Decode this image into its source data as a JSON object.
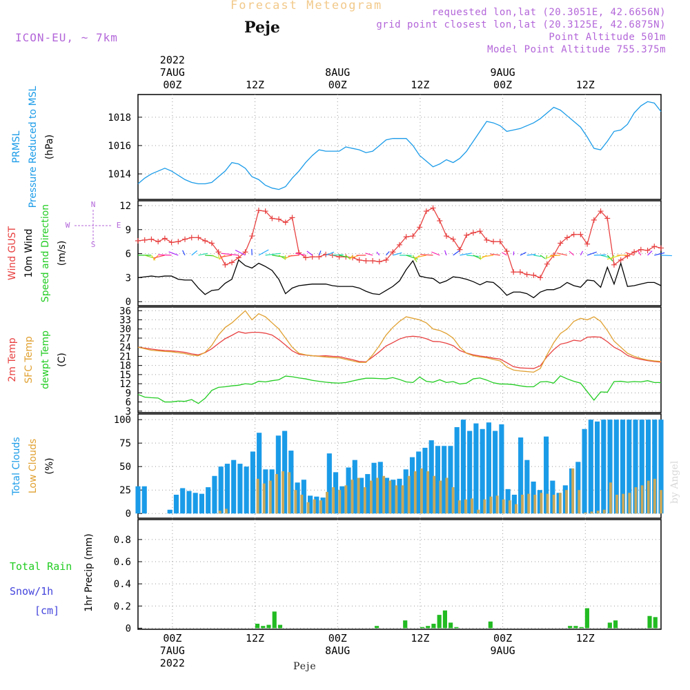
{
  "header": {
    "subtitle": "Forecast Meteogram",
    "location": "Peje",
    "model": "ICON-EU, ~ 7km",
    "requested": "requested lon,lat (20.3051E, 42.6656N)",
    "gridpoint": "grid point closest lon,lat (20.3125E, 42.6875N)",
    "altitude": "Point Altitude 501m",
    "model_altitude": "Model Point Altitude 755.375m"
  },
  "footer": {
    "location": "Peje",
    "watermark": "by Angel"
  },
  "time_axis": {
    "ticks": [
      {
        "label": "00Z",
        "date": "7AUG",
        "year": "2022"
      },
      {
        "label": "12Z",
        "date": "",
        "year": ""
      },
      {
        "label": "00Z",
        "date": "8AUG",
        "year": ""
      },
      {
        "label": "12Z",
        "date": "",
        "year": ""
      },
      {
        "label": "00Z",
        "date": "9AUG",
        "year": ""
      },
      {
        "label": "12Z",
        "date": "",
        "year": ""
      }
    ],
    "hours_from_start": [
      0,
      12,
      24,
      36,
      48,
      60
    ],
    "start_hour_offset": -5,
    "end_hour_offset": 71
  },
  "colors": {
    "blue": "#1a9be8",
    "red": "#e84040",
    "orange": "#e0a030",
    "green": "#22cc22",
    "black": "#000000",
    "purple": "#9955cc"
  },
  "chart_data": [
    {
      "type": "line",
      "panel": "pressure",
      "ylabel_lines": [
        {
          "text": "PRMSL",
          "color": "#1a9be8"
        },
        {
          "text": "Pressure Reduced to MSL",
          "color": "#1a9be8"
        },
        {
          "text": "(hPa)",
          "color": "#000000"
        }
      ],
      "yticks": [
        1014,
        1016,
        1018
      ],
      "ylim": [
        1012.2,
        1019.6
      ],
      "series": [
        {
          "name": "PRMSL",
          "color": "#1a9be8",
          "values": [
            1013.3,
            1013.7,
            1014.0,
            1014.2,
            1014.4,
            1014.2,
            1013.9,
            1013.6,
            1013.4,
            1013.3,
            1013.3,
            1013.4,
            1013.8,
            1014.2,
            1014.8,
            1014.7,
            1014.4,
            1013.8,
            1013.6,
            1013.2,
            1013.0,
            1012.9,
            1013.1,
            1013.7,
            1014.2,
            1014.8,
            1015.3,
            1015.7,
            1015.6,
            1015.6,
            1015.6,
            1015.9,
            1015.8,
            1015.7,
            1015.5,
            1015.6,
            1016.0,
            1016.4,
            1016.5,
            1016.5,
            1016.5,
            1016.0,
            1015.3,
            1014.9,
            1014.5,
            1014.7,
            1015.0,
            1014.8,
            1015.1,
            1015.6,
            1016.3,
            1017.0,
            1017.7,
            1017.6,
            1017.4,
            1017.0,
            1017.1,
            1017.2,
            1017.4,
            1017.6,
            1017.9,
            1018.3,
            1018.7,
            1018.5,
            1018.1,
            1017.7,
            1017.3,
            1016.6,
            1015.8,
            1015.7,
            1016.3,
            1017.0,
            1017.1,
            1017.5,
            1018.3,
            1018.8,
            1019.1,
            1019.0,
            1018.4
          ]
        }
      ]
    },
    {
      "type": "line",
      "panel": "wind",
      "ylabel_lines": [
        {
          "text": "Wind GUST",
          "color": "#e84040"
        },
        {
          "text": "10m Wind",
          "color": "#000000"
        },
        {
          "text": "Speed and Direction",
          "color": "#22cc22"
        },
        {
          "text": "(m/s)",
          "color": "#000000"
        }
      ],
      "compass": {
        "n": "N",
        "s": "S",
        "e": "E",
        "w": "W",
        "color": "#b366d9"
      },
      "yticks": [
        0,
        3,
        6,
        9,
        12
      ],
      "ylim": [
        -0.5,
        12.6
      ],
      "series": [
        {
          "name": "Wind GUST",
          "color": "#e84040",
          "marker": "plus",
          "values": [
            7.6,
            7.7,
            7.8,
            7.5,
            7.9,
            7.4,
            7.5,
            7.8,
            8.0,
            8.0,
            7.6,
            7.3,
            6.2,
            4.6,
            4.9,
            5.5,
            6.2,
            8.2,
            11.4,
            11.3,
            10.4,
            10.3,
            9.9,
            10.5,
            6.1,
            5.5,
            5.6,
            5.6,
            5.9,
            5.8,
            5.6,
            5.6,
            5.5,
            5.2,
            5.1,
            5.1,
            5.0,
            5.2,
            6.2,
            7.1,
            8.1,
            8.2,
            9.3,
            11.3,
            11.7,
            10.1,
            8.2,
            7.8,
            6.5,
            8.3,
            8.6,
            8.8,
            7.7,
            7.5,
            7.5,
            6.3,
            3.7,
            3.7,
            3.4,
            3.3,
            3.0,
            4.7,
            5.8,
            7.3,
            8.0,
            8.4,
            8.4,
            7.2,
            10.2,
            11.3,
            10.4,
            4.6,
            5.2,
            5.7,
            6.2,
            6.5,
            6.4,
            6.9,
            6.7
          ]
        },
        {
          "name": "10m Wind",
          "color": "#000000",
          "values": [
            3.0,
            3.1,
            3.2,
            3.1,
            3.2,
            3.2,
            2.8,
            2.7,
            2.7,
            1.7,
            0.9,
            1.4,
            1.5,
            2.3,
            2.8,
            5.2,
            4.5,
            4.2,
            4.8,
            4.4,
            3.9,
            2.8,
            1.0,
            1.7,
            2.0,
            2.1,
            2.2,
            2.2,
            2.2,
            2.0,
            1.9,
            1.9,
            1.9,
            1.7,
            1.3,
            1.0,
            0.9,
            1.4,
            1.9,
            2.6,
            4.0,
            5.1,
            3.2,
            3.0,
            2.9,
            2.3,
            2.6,
            3.1,
            3.0,
            2.8,
            2.5,
            2.1,
            2.5,
            2.4,
            1.7,
            0.8,
            1.2,
            1.2,
            1.0,
            0.5,
            1.2,
            1.5,
            1.5,
            1.8,
            2.4,
            2.0,
            1.8,
            2.7,
            2.6,
            1.8,
            4.3,
            2.2,
            4.8,
            1.9,
            2.0,
            2.2,
            2.4,
            2.4,
            2.0
          ]
        },
        {
          "name": "Speed and Direction",
          "color": "#22cc22",
          "marker": "arrow",
          "level": 5.8
        }
      ]
    },
    {
      "type": "line",
      "panel": "temperature",
      "ylabel_lines": [
        {
          "text": "2m Temp",
          "color": "#e84040"
        },
        {
          "text": "SFC Temp",
          "color": "#e0a030"
        },
        {
          "text": "dewpt Temp",
          "color": "#22cc22"
        },
        {
          "text": "(C)",
          "color": "#000000"
        }
      ],
      "yticks": [
        3,
        6,
        9,
        12,
        15,
        18,
        21,
        24,
        27,
        30,
        33,
        36
      ],
      "ylim": [
        2.5,
        37.2
      ],
      "series": [
        {
          "name": "2m Temp",
          "color": "#e84040",
          "values": [
            24.0,
            23.7,
            23.4,
            23.1,
            22.9,
            22.8,
            22.6,
            22.3,
            21.8,
            21.5,
            22.2,
            23.5,
            25.2,
            26.8,
            27.9,
            29.1,
            28.6,
            28.9,
            28.9,
            28.6,
            28.0,
            26.5,
            24.7,
            22.8,
            21.7,
            21.4,
            21.2,
            21.1,
            21.2,
            21.0,
            20.9,
            20.4,
            19.9,
            19.3,
            19.2,
            20.8,
            22.5,
            24.4,
            25.5,
            26.7,
            27.4,
            27.6,
            27.4,
            26.8,
            25.9,
            25.8,
            25.3,
            24.5,
            22.9,
            22.1,
            21.5,
            21.1,
            20.8,
            20.4,
            20.1,
            18.9,
            17.6,
            17.2,
            17.1,
            17.0,
            17.9,
            20.9,
            23.2,
            25.0,
            25.5,
            26.3,
            26.0,
            27.3,
            27.4,
            27.3,
            25.8,
            24.0,
            22.9,
            21.3,
            20.5,
            20.0,
            19.6,
            19.3,
            19.1
          ]
        },
        {
          "name": "SFC Temp",
          "color": "#e0a030",
          "values": [
            24.0,
            23.5,
            23.0,
            22.8,
            22.6,
            22.5,
            22.2,
            21.9,
            21.4,
            21.2,
            22.3,
            24.6,
            28.0,
            30.5,
            32.0,
            34.0,
            36.0,
            33.0,
            35.0,
            34.0,
            32.0,
            30.0,
            27.0,
            24.0,
            22.0,
            21.5,
            21.2,
            21.0,
            20.8,
            20.6,
            20.5,
            20.0,
            19.5,
            19.0,
            19.0,
            21.5,
            24.5,
            28.0,
            30.5,
            32.5,
            34.0,
            33.5,
            33.0,
            32.0,
            30.0,
            29.5,
            28.5,
            27.0,
            24.0,
            22.0,
            21.2,
            20.8,
            20.5,
            20.0,
            19.5,
            17.5,
            16.5,
            16.2,
            16.0,
            15.8,
            17.0,
            21.5,
            25.5,
            28.5,
            30.0,
            32.5,
            33.5,
            33.0,
            34.0,
            32.5,
            29.5,
            26.0,
            24.0,
            22.0,
            21.0,
            20.3,
            19.8,
            19.5,
            19.3
          ]
        },
        {
          "name": "dewpt Temp",
          "color": "#22cc22",
          "values": [
            8.5,
            7.6,
            7.4,
            7.3,
            6.0,
            6.0,
            6.3,
            6.2,
            6.8,
            5.5,
            7.2,
            9.8,
            10.8,
            11.0,
            11.3,
            11.5,
            12.0,
            11.8,
            12.8,
            12.6,
            13.0,
            13.3,
            14.5,
            14.3,
            13.9,
            13.6,
            13.1,
            12.8,
            12.5,
            12.3,
            12.2,
            12.4,
            12.9,
            13.4,
            13.8,
            13.8,
            13.7,
            13.6,
            14.0,
            13.4,
            12.6,
            12.4,
            14.2,
            12.8,
            12.5,
            13.3,
            12.4,
            12.7,
            11.9,
            12.2,
            13.6,
            13.9,
            13.2,
            12.3,
            11.9,
            11.9,
            11.7,
            11.3,
            11.0,
            11.0,
            12.6,
            12.7,
            12.2,
            14.6,
            13.6,
            12.8,
            12.2,
            9.4,
            6.6,
            9.3,
            9.2,
            12.7,
            12.8,
            12.5,
            12.7,
            12.6,
            13.0,
            12.4,
            12.4
          ]
        }
      ]
    },
    {
      "type": "bar",
      "panel": "clouds",
      "ylabel_lines": [
        {
          "text": "Total Clouds",
          "color": "#1a9be8"
        },
        {
          "text": "Low Clouds",
          "color": "#e0a030"
        },
        {
          "text": "(%)",
          "color": "#000000"
        }
      ],
      "yticks": [
        0,
        25,
        50,
        75,
        100
      ],
      "ylim": [
        -5,
        106
      ],
      "series": [
        {
          "name": "Total Clouds",
          "color": "#1a9be8",
          "values": [
            29,
            29,
            0,
            0,
            0,
            4,
            20,
            27,
            24,
            22,
            21,
            28,
            40,
            50,
            53,
            57,
            53,
            50,
            66,
            86,
            47,
            47,
            83,
            88,
            67,
            33,
            36,
            19,
            18,
            17,
            64,
            44,
            29,
            49,
            57,
            38,
            42,
            54,
            55,
            38,
            36,
            37,
            47,
            60,
            66,
            70,
            78,
            72,
            72,
            72,
            92,
            100,
            88,
            96,
            90,
            97,
            88,
            95,
            26,
            20,
            81,
            57,
            34,
            25,
            82,
            35,
            22,
            30,
            48,
            55,
            90,
            100,
            98,
            100,
            100,
            100,
            100,
            100,
            100,
            100,
            100,
            100,
            100
          ]
        },
        {
          "name": "Low Clouds",
          "color": "#c8a85a",
          "values": [
            0,
            0,
            0,
            0,
            0,
            0,
            0,
            0,
            0,
            0,
            0,
            0,
            0,
            3,
            5,
            0,
            0,
            0,
            0,
            37,
            32,
            35,
            42,
            45,
            44,
            25,
            20,
            12,
            15,
            14,
            23,
            28,
            25,
            30,
            36,
            38,
            28,
            35,
            38,
            40,
            35,
            30,
            30,
            40,
            45,
            48,
            45,
            40,
            35,
            38,
            28,
            14,
            15,
            16,
            4,
            15,
            18,
            19,
            15,
            14,
            10,
            20,
            21,
            20,
            22,
            21,
            20,
            22,
            25,
            48,
            25,
            1,
            2,
            3,
            4,
            33,
            20,
            21,
            22,
            28,
            30,
            35,
            37,
            25
          ]
        }
      ]
    },
    {
      "type": "bar",
      "panel": "precip",
      "ylabel_lines": [
        {
          "text": "1hr Precip (mm)",
          "color": "#000000"
        }
      ],
      "side_labels": [
        {
          "text": "Total Rain",
          "color": "#22cc22"
        },
        {
          "text": "Snow/1h",
          "color": "#4444dd"
        },
        {
          "text": "[cm]",
          "color": "#4444dd"
        }
      ],
      "yticks": [
        0,
        0.2,
        0.4,
        0.6,
        0.8
      ],
      "ylim": [
        -0.01,
        0.98
      ],
      "series": [
        {
          "name": "Total Rain",
          "color": "#22bb22",
          "values": [
            0,
            0,
            0,
            0,
            0,
            0,
            0,
            0,
            0,
            0,
            0,
            0,
            0,
            0,
            0,
            0,
            0,
            0,
            0,
            0,
            0,
            0.04,
            0.02,
            0.03,
            0.15,
            0.03,
            0,
            0,
            0,
            0,
            0,
            0,
            0,
            0,
            0,
            0,
            0,
            0,
            0,
            0,
            0,
            0,
            0.02,
            0,
            0,
            0,
            0,
            0.07,
            0,
            0,
            0.01,
            0.02,
            0.04,
            0.12,
            0.16,
            0.05,
            0.01,
            0,
            0,
            0,
            0,
            0,
            0.06,
            0,
            0,
            0,
            0,
            0,
            0,
            0,
            0,
            0,
            0,
            0,
            0,
            0,
            0.02,
            0.02,
            0.01,
            0.18,
            0,
            0,
            0,
            0.05,
            0.07,
            0,
            0,
            0,
            0,
            0,
            0.11,
            0.1,
            0
          ]
        }
      ]
    }
  ]
}
